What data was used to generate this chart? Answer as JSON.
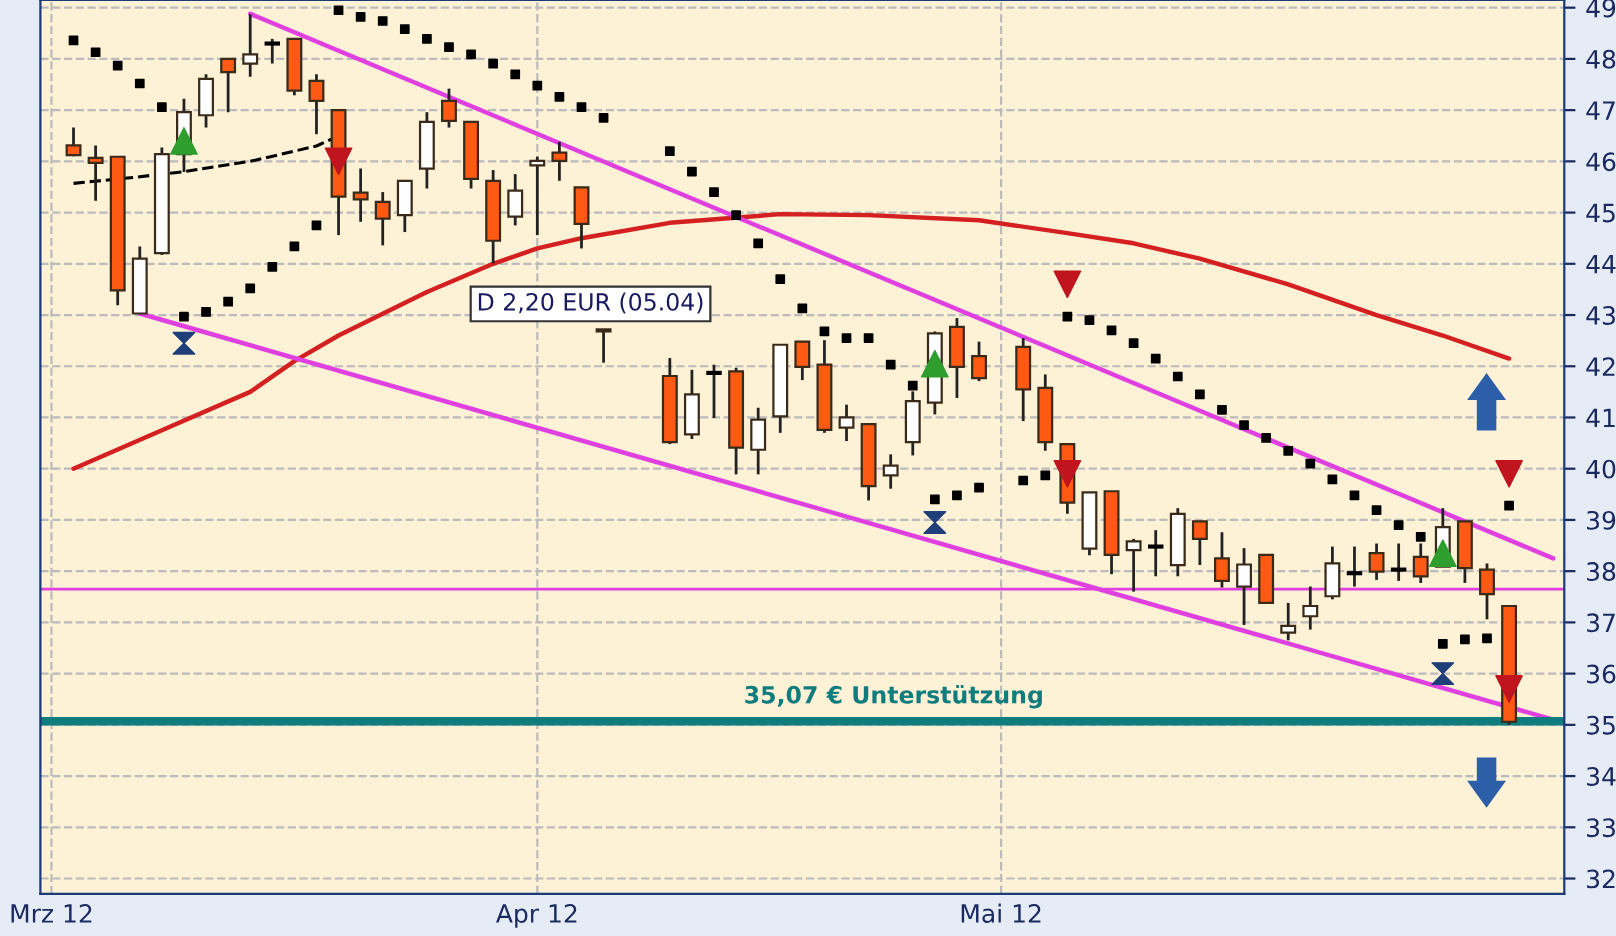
{
  "chart_data": {
    "type": "candlestick",
    "categories": [
      "Mrz 12",
      null,
      null,
      null,
      null,
      null,
      null,
      null,
      null,
      null,
      null,
      null,
      null,
      null,
      null,
      null,
      null,
      null,
      null,
      null,
      null,
      null,
      "Apr 12",
      null,
      null,
      null,
      null,
      null,
      null,
      null,
      null,
      null,
      null,
      null,
      null,
      null,
      null,
      null,
      null,
      null,
      null,
      null,
      null,
      "Mai 12",
      null,
      null,
      null,
      null,
      null,
      null,
      null,
      null,
      null,
      null,
      null,
      null,
      null,
      null,
      null,
      null,
      null,
      null,
      null,
      null,
      null,
      null,
      null,
      null,
      null
    ],
    "ohlc": [
      null,
      [
        46.31,
        46.66,
        46.1,
        46.12
      ],
      [
        46.07,
        46.31,
        45.23,
        45.97
      ],
      [
        46.09,
        46.09,
        43.19,
        43.48
      ],
      [
        43.03,
        44.34,
        43.03,
        44.1
      ],
      [
        44.21,
        46.27,
        44.17,
        46.14
      ],
      [
        46.14,
        47.22,
        45.79,
        46.96
      ],
      [
        46.9,
        47.7,
        46.66,
        47.61
      ],
      [
        48.0,
        48.0,
        46.96,
        47.74
      ],
      [
        47.91,
        48.87,
        47.65,
        48.09
      ],
      [
        48.3,
        48.39,
        47.91,
        48.3
      ],
      [
        48.39,
        48.39,
        47.29,
        47.38
      ],
      [
        47.57,
        47.7,
        46.53,
        47.18
      ],
      [
        47.0,
        47.0,
        44.56,
        45.31
      ],
      [
        45.39,
        45.86,
        44.82,
        45.26
      ],
      [
        45.21,
        45.4,
        44.36,
        44.88
      ],
      [
        44.95,
        45.62,
        44.62,
        45.62
      ],
      [
        45.86,
        46.96,
        45.47,
        46.77
      ],
      [
        47.18,
        47.42,
        46.66,
        46.79
      ],
      [
        46.77,
        46.77,
        45.47,
        45.66
      ],
      [
        45.62,
        45.83,
        44.01,
        44.45
      ],
      [
        44.92,
        45.75,
        44.75,
        45.43
      ],
      [
        45.92,
        46.09,
        44.56,
        46.01
      ],
      [
        46.17,
        46.38,
        45.62,
        46.01
      ],
      [
        45.49,
        45.49,
        44.3,
        44.78
      ],
      [
        42.72,
        42.72,
        42.07,
        42.68
      ],
      null,
      null,
      [
        41.81,
        42.16,
        40.48,
        40.52
      ],
      [
        40.67,
        41.93,
        40.58,
        41.45
      ],
      [
        41.87,
        42.03,
        40.99,
        41.87
      ],
      [
        41.9,
        41.97,
        39.89,
        40.41
      ],
      [
        40.37,
        41.19,
        39.89,
        40.96
      ],
      [
        41.02,
        42.42,
        40.7,
        42.42
      ],
      [
        42.48,
        42.48,
        41.73,
        41.99
      ],
      [
        42.03,
        42.51,
        40.7,
        40.76
      ],
      [
        40.8,
        41.25,
        40.54,
        41.0
      ],
      [
        40.87,
        40.87,
        39.38,
        39.66
      ],
      [
        39.87,
        40.28,
        39.61,
        40.06
      ],
      [
        40.52,
        41.51,
        40.26,
        41.32
      ],
      [
        41.29,
        42.68,
        41.06,
        42.64
      ],
      [
        42.77,
        42.94,
        41.38,
        41.99
      ],
      [
        42.2,
        42.48,
        41.71,
        41.77
      ],
      null,
      [
        42.38,
        42.55,
        40.93,
        41.55
      ],
      [
        41.58,
        41.84,
        40.35,
        40.52
      ],
      [
        40.48,
        40.48,
        39.12,
        39.34
      ],
      [
        38.44,
        39.54,
        38.31,
        39.54
      ],
      [
        39.56,
        39.56,
        37.94,
        38.32
      ],
      [
        38.41,
        38.63,
        37.6,
        38.58
      ],
      [
        38.48,
        38.8,
        37.9,
        38.48
      ],
      [
        38.12,
        39.23,
        37.9,
        39.12
      ],
      [
        38.97,
        38.97,
        38.12,
        38.63
      ],
      [
        38.25,
        38.76,
        37.68,
        37.81
      ],
      [
        37.7,
        38.45,
        36.95,
        38.13
      ],
      [
        38.32,
        38.32,
        37.38,
        37.38
      ],
      [
        36.8,
        37.38,
        36.65,
        36.93
      ],
      [
        37.12,
        37.7,
        36.86,
        37.32
      ],
      [
        37.51,
        38.48,
        37.45,
        38.15
      ],
      [
        37.96,
        38.48,
        37.7,
        37.96
      ],
      [
        38.35,
        38.54,
        37.83,
        37.99
      ],
      [
        38.03,
        38.54,
        37.81,
        38.03
      ],
      [
        38.28,
        38.54,
        37.77,
        37.9
      ],
      [
        38.09,
        39.23,
        38.09,
        38.86
      ],
      [
        38.97,
        38.97,
        37.77,
        38.06
      ],
      [
        38.03,
        38.15,
        37.06,
        37.55
      ],
      [
        37.32,
        37.32,
        35.0,
        35.06
      ],
      null,
      null
    ],
    "colors": [
      null,
      "#ff5a14",
      "#ff5a14",
      "#ff5a14",
      "#ffffff",
      "#ffffff",
      "#ffffff",
      "#ffffff",
      "#ff5a14",
      "#ffffff",
      "#000000",
      "#ff5a14",
      "#ff5a14",
      "#ff5a14",
      "#ff5a14",
      "#ff5a14",
      "#ffffff",
      "#ffffff",
      "#ff5a14",
      "#ff5a14",
      "#ff5a14",
      "#ffffff",
      "#ffffff",
      "#ff5a14",
      "#ff5a14",
      "#ff5a14",
      null,
      null,
      "#ff5a14",
      "#ffffff",
      "#000000",
      "#ff5a14",
      "#ffffff",
      "#ffffff",
      "#ff5a14",
      "#ff5a14",
      "#ffffff",
      "#ff5a14",
      "#ffffff",
      "#ffffff",
      "#ffffff",
      "#ff5a14",
      "#ff5a14",
      null,
      "#ff5a14",
      "#ff5a14",
      "#ff5a14",
      "#ffffff",
      "#ff5a14",
      "#ffffff",
      "#000000",
      "#ffffff",
      "#ff5a14",
      "#ff5a14",
      "#ffffff",
      "#ff5a14",
      "#ffffff",
      "#ffffff",
      "#ffffff",
      "#000000",
      "#ff5a14",
      "#000000",
      "#ff5a14",
      "#ffffff",
      "#ff5a14",
      "#ff5a14",
      "#ff5a14",
      null,
      null
    ],
    "series": [
      {
        "type": "line",
        "color": "#d42020",
        "values": [
          null,
          40.0,
          null,
          null,
          null,
          40.75,
          null,
          null,
          null,
          41.5,
          null,
          42.1,
          null,
          42.6,
          null,
          null,
          null,
          43.45,
          null,
          null,
          44.0,
          null,
          44.3,
          null,
          44.5,
          null,
          null,
          null,
          44.8,
          null,
          null,
          null,
          null,
          44.97,
          null,
          null,
          null,
          44.95,
          null,
          null,
          null,
          null,
          44.85,
          null,
          null,
          null,
          44.6,
          null,
          null,
          44.4,
          null,
          null,
          44.1,
          null,
          null,
          null,
          43.6,
          null,
          null,
          null,
          43.0,
          null,
          null,
          42.6,
          null,
          null,
          42.15,
          null,
          null
        ]
      },
      {
        "type": "line",
        "color": "#000000",
        "line_style": "dashed",
        "values": [
          null,
          45.57,
          null,
          null,
          45.7,
          null,
          45.8,
          null,
          null,
          46.0,
          null,
          null,
          46.3,
          46.5,
          null,
          null,
          null,
          null,
          null,
          null,
          null,
          null,
          null,
          null,
          null,
          null,
          null,
          null,
          null,
          null,
          null,
          null,
          null,
          null,
          null,
          null,
          null,
          null,
          null,
          null,
          null,
          null,
          null,
          null,
          null,
          null,
          null,
          null,
          null,
          null,
          null,
          null,
          null,
          null,
          null,
          null,
          null,
          null,
          null,
          null,
          null,
          null,
          null,
          null,
          null,
          null,
          null,
          null,
          null
        ]
      },
      {
        "type": "line",
        "color": "#e040e0",
        "values": [
          null,
          null,
          null,
          null,
          null,
          null,
          null,
          null,
          null,
          48.88,
          null,
          null,
          null,
          null,
          null,
          null,
          null,
          null,
          null,
          null,
          null,
          null,
          null,
          null,
          null,
          null,
          null,
          null,
          null,
          null,
          null,
          null,
          null,
          null,
          null,
          null,
          null,
          null,
          null,
          null,
          null,
          null,
          null,
          null,
          null,
          null,
          null,
          null,
          null,
          null,
          null,
          null,
          null,
          null,
          null,
          null,
          null,
          null,
          null,
          null,
          null,
          null,
          null,
          null,
          null,
          null,
          null,
          null,
          38.25
        ]
      },
      {
        "type": "line",
        "color": "#e040e0",
        "values": [
          null,
          null,
          null,
          null,
          43.03,
          null,
          null,
          null,
          null,
          null,
          null,
          null,
          null,
          null,
          null,
          null,
          null,
          null,
          null,
          null,
          null,
          null,
          null,
          null,
          null,
          null,
          null,
          null,
          null,
          null,
          null,
          null,
          null,
          null,
          null,
          null,
          null,
          null,
          null,
          null,
          null,
          null,
          null,
          null,
          null,
          null,
          null,
          null,
          null,
          null,
          null,
          null,
          null,
          null,
          null,
          null,
          null,
          null,
          null,
          null,
          null,
          null,
          null,
          null,
          null,
          null,
          null,
          null,
          35.1
        ]
      },
      {
        "type": "scatter",
        "color": "#000000",
        "marker": "square",
        "values": [
          null,
          48.36,
          48.13,
          47.87,
          47.52,
          47.06,
          42.97,
          43.06,
          43.26,
          43.52,
          43.94,
          44.34,
          44.75,
          48.95,
          48.82,
          48.74,
          48.58,
          48.39,
          48.23,
          48.09,
          47.91,
          47.7,
          47.48,
          47.26,
          47.06,
          46.85,
          null,
          null,
          46.2,
          45.8,
          45.4,
          44.95,
          44.4,
          43.7,
          43.13,
          42.68,
          42.55,
          42.55,
          42.03,
          41.62,
          39.4,
          39.48,
          39.63,
          null,
          39.77,
          39.87,
          42.97,
          42.9,
          42.7,
          42.45,
          42.15,
          41.8,
          41.45,
          41.15,
          40.85,
          40.6,
          40.35,
          40.1,
          39.79,
          39.48,
          39.19,
          38.9,
          38.67,
          36.58,
          36.67,
          36.69,
          39.28,
          null,
          null
        ]
      },
      {
        "type": "scatter",
        "color": "#2e9e2e",
        "marker": "triangle",
        "values": [
          null,
          null,
          null,
          null,
          null,
          null,
          46.4,
          null,
          null,
          null,
          null,
          null,
          null,
          null,
          null,
          null,
          null,
          null,
          null,
          null,
          null,
          null,
          null,
          null,
          null,
          null,
          null,
          null,
          null,
          null,
          null,
          null,
          null,
          null,
          null,
          null,
          null,
          null,
          null,
          null,
          42.05,
          null,
          null,
          null,
          null,
          null,
          null,
          null,
          null,
          null,
          null,
          null,
          null,
          null,
          null,
          null,
          null,
          null,
          null,
          null,
          null,
          null,
          null,
          38.35,
          null,
          null,
          null,
          null,
          null
        ]
      },
      {
        "type": "scatter",
        "color": "#c0141e",
        "marker": "triangle_down",
        "values": [
          null,
          null,
          null,
          null,
          null,
          null,
          null,
          null,
          null,
          null,
          null,
          null,
          null,
          46.0,
          null,
          null,
          null,
          null,
          null,
          null,
          null,
          null,
          null,
          null,
          null,
          null,
          null,
          null,
          null,
          null,
          null,
          null,
          null,
          null,
          null,
          null,
          null,
          null,
          null,
          null,
          null,
          null,
          null,
          null,
          null,
          null,
          43.6,
          null,
          null,
          null,
          null,
          null,
          null,
          null,
          null,
          null,
          null,
          null,
          null,
          null,
          null,
          null,
          null,
          null,
          null,
          null,
          39.9,
          null,
          null
        ]
      },
      {
        "type": "scatter",
        "color": "#c0141e",
        "marker": "triangle_down",
        "values": [
          null,
          null,
          null,
          null,
          null,
          null,
          null,
          null,
          null,
          null,
          null,
          null,
          null,
          null,
          null,
          null,
          null,
          null,
          null,
          null,
          null,
          null,
          null,
          null,
          null,
          null,
          null,
          null,
          null,
          null,
          null,
          null,
          null,
          null,
          null,
          null,
          null,
          null,
          null,
          null,
          null,
          null,
          null,
          null,
          null,
          null,
          39.9,
          null,
          null,
          null,
          null,
          null,
          null,
          null,
          null,
          null,
          null,
          null,
          null,
          null,
          null,
          null,
          null,
          null,
          null,
          null,
          35.7,
          null,
          null
        ]
      },
      {
        "type": "scatter",
        "color": "#1f3f7a",
        "values": [
          null,
          null,
          null,
          null,
          null,
          null,
          42.45,
          null,
          null,
          null,
          null,
          null,
          null,
          null,
          null,
          null,
          null,
          null,
          null,
          null,
          null,
          null,
          null,
          null,
          null,
          null,
          null,
          null,
          null,
          null,
          null,
          null,
          null,
          null,
          null,
          null,
          null,
          null,
          null,
          null,
          38.95,
          null,
          null,
          null,
          null,
          null,
          null,
          null,
          null,
          null,
          null,
          null,
          null,
          null,
          null,
          null,
          null,
          null,
          null,
          null,
          null,
          null,
          null,
          36.0,
          null,
          null,
          null,
          null,
          null
        ]
      }
    ],
    "ref_lines": [
      {
        "axis": "y",
        "value": 37.65,
        "color": "#e040e0"
      },
      {
        "axis": "y",
        "value": 35.07,
        "label": "35,07 € Unterstützung",
        "color": "#0f7d7d"
      }
    ],
    "annotations": [
      "D 2,20 EUR (05.04)"
    ],
    "ylim": [
      31.7,
      49.15
    ],
    "yticks": [
      32,
      33,
      34,
      35,
      36,
      37,
      38,
      39,
      40,
      41,
      42,
      43,
      44,
      45,
      46,
      47,
      48,
      49
    ],
    "grid": true
  }
}
